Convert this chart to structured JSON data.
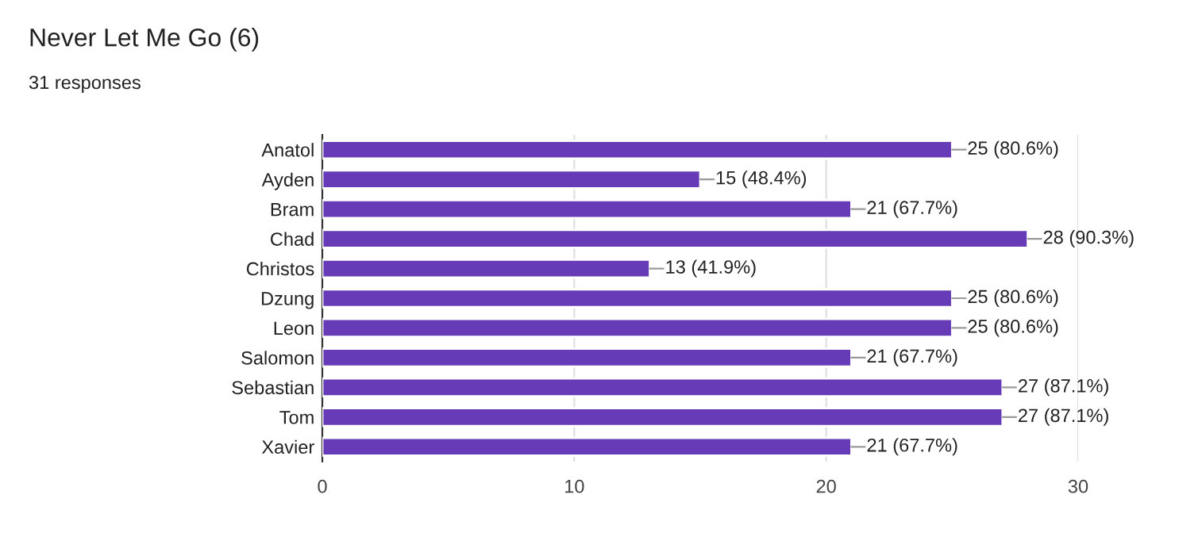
{
  "chart_data": {
    "type": "bar",
    "orientation": "horizontal",
    "title": "Never Let Me Go (6)",
    "subtitle": "31 responses",
    "categories": [
      "Anatol",
      "Ayden",
      "Bram",
      "Chad",
      "Christos",
      "Dzung",
      "Leon",
      "Salomon",
      "Sebastian",
      "Tom",
      "Xavier"
    ],
    "values": [
      25,
      15,
      21,
      28,
      13,
      25,
      25,
      21,
      27,
      27,
      21
    ],
    "value_labels": [
      "25 (80.6%)",
      "15 (48.4%)",
      "21 (67.7%)",
      "28 (90.3%)",
      "13 (41.9%)",
      "25 (80.6%)",
      "25 (80.6%)",
      "21 (67.7%)",
      "27 (87.1%)",
      "27 (87.1%)",
      "21 (67.7%)"
    ],
    "color": "#673ab7",
    "xlim": [
      0,
      30
    ],
    "xticks": [
      0,
      10,
      20,
      30
    ],
    "grid": "x"
  }
}
